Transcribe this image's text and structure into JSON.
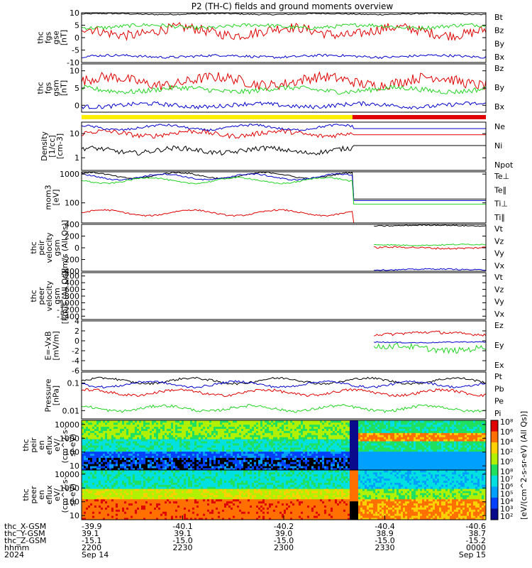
{
  "title": "P2 (TH-C) fields and ground moments overview",
  "colors": {
    "black": "#000000",
    "red": "#e00000",
    "green": "#22d422",
    "blue": "#0000cc",
    "yellow": "#ffee00",
    "barred": "#e00000"
  },
  "chart_data": [
    {
      "type": "line",
      "id": "fgs",
      "ylabel": [
        "thc",
        "fgs",
        "gse",
        "[nT]"
      ],
      "ylim": [
        -10,
        10
      ],
      "yticks": [
        -10,
        -5,
        0,
        5,
        10
      ],
      "series": [
        {
          "name": "Bt",
          "color": "black",
          "base": 9.5,
          "amp": 0.5
        },
        {
          "name": "Bz",
          "color": "red",
          "base": 2.5,
          "amp": 4
        },
        {
          "name": "By",
          "color": "green",
          "base": 4.5,
          "amp": 1.5
        },
        {
          "name": "Bx",
          "color": "blue",
          "base": -7.5,
          "amp": 1
        }
      ]
    },
    {
      "type": "line",
      "id": "fgs_gsm",
      "ylabel": [
        "thc",
        "fgs",
        "gsm",
        "[nT]"
      ],
      "ylim": [
        -2,
        12
      ],
      "yticks": [
        0,
        5,
        10
      ],
      "series": [
        {
          "name": "Bz",
          "color": "red",
          "base": 7,
          "amp": 3
        },
        {
          "name": "By",
          "color": "green",
          "base": 4.5,
          "amp": 1.5
        },
        {
          "name": "Bx",
          "color": "blue",
          "base": 0,
          "amp": 1.2
        }
      ]
    },
    {
      "type": "line",
      "id": "density",
      "ylabel": [
        "Density",
        "[1/cc]",
        "[cm-3]"
      ],
      "scale": "log",
      "ylim": [
        0.3,
        30
      ],
      "yticks": [
        1,
        10
      ],
      "series": [
        {
          "name": "Ne",
          "color": "red",
          "base": 10,
          "amp": 0.2
        },
        {
          "name": "Ni",
          "color": "black",
          "base": 2,
          "amp": 0.2
        },
        {
          "name": "Npot",
          "color": "blue",
          "base": 18,
          "amp": 0.1
        }
      ]
    },
    {
      "type": "line",
      "id": "temp",
      "ylabel": [
        "mom3",
        "[eV]"
      ],
      "scale": "log",
      "ylim": [
        20,
        1200
      ],
      "yticks": [
        100,
        1000
      ],
      "series": [
        {
          "name": "Te⊥",
          "color": "red",
          "base": 45,
          "amp": 0.05
        },
        {
          "name": "Te∥",
          "color": "black",
          "base": 900,
          "amp": 0.05
        },
        {
          "name": "Ti⊥",
          "color": "blue",
          "base": 800,
          "amp": 0.05
        },
        {
          "name": "Ti∥",
          "color": "green",
          "base": 600,
          "amp": 0.05
        }
      ]
    },
    {
      "type": "line",
      "id": "peir_v",
      "ylabel": [
        "thc",
        "peir",
        "velocity",
        "gsm",
        "[km/s (All Qs)]"
      ],
      "ylim": [
        -400,
        400
      ],
      "yticks": [
        -400,
        -200,
        0,
        200,
        400
      ],
      "series": [
        {
          "name": "Vt",
          "color": "black",
          "base": 380,
          "amp": 20
        },
        {
          "name": "Vz",
          "color": "red",
          "base": 0,
          "amp": 30
        },
        {
          "name": "Vy",
          "color": "green",
          "base": 50,
          "amp": 20
        },
        {
          "name": "Vx",
          "color": "blue",
          "base": -370,
          "amp": 20
        }
      ]
    },
    {
      "type": "line",
      "id": "peer_v",
      "ylabel": [
        "thc",
        "peer",
        "velocity",
        "gsm",
        "[km/s (All Qs)]"
      ],
      "ylim": [
        -1500,
        -100
      ],
      "yticks": [
        -1400,
        -1200,
        -1000,
        -800,
        -600,
        -400,
        -200
      ],
      "series": [
        {
          "name": "Vt",
          "color": "black"
        },
        {
          "name": "Vz",
          "color": "red"
        },
        {
          "name": "Vy",
          "color": "green"
        },
        {
          "name": "Vx",
          "color": "blue"
        }
      ]
    },
    {
      "type": "line",
      "id": "efield",
      "ylabel": [
        "E=-VxB",
        "[mV/m]"
      ],
      "ylim": [
        -6,
        4
      ],
      "yticks": [
        -6,
        -4,
        -2,
        0,
        2,
        4
      ],
      "series": [
        {
          "name": "Ez",
          "color": "red",
          "base": 1.5,
          "amp": 0.6
        },
        {
          "name": "Ey",
          "color": "green",
          "base": -1.5,
          "amp": 1.2
        },
        {
          "name": "Ex",
          "color": "blue",
          "base": -0.3,
          "amp": 0.2
        }
      ]
    },
    {
      "type": "line",
      "id": "pressure",
      "ylabel": [
        "Pressure",
        "[nPa]"
      ],
      "scale": "log",
      "ylim": [
        0.005,
        0.25
      ],
      "yticks": [
        0.01,
        0.1
      ],
      "series": [
        {
          "name": "Pt",
          "color": "black",
          "base": 0.12,
          "amp": 0.08
        },
        {
          "name": "Pb",
          "color": "red",
          "base": 0.045,
          "amp": 0.1
        },
        {
          "name": "Pe",
          "color": "green",
          "base": 0.012,
          "amp": 0.1
        },
        {
          "name": "Pi",
          "color": "blue",
          "base": 0.09,
          "amp": 0.08
        }
      ]
    },
    {
      "type": "heatmap",
      "id": "peir_en",
      "ylabel": [
        "thc",
        "peir",
        "en",
        "eflux",
        "eV/",
        "(cm^2-s-",
        "sr-eV)"
      ],
      "ylim": [
        5,
        20000
      ],
      "yticks": [
        10,
        100,
        1000,
        10000
      ]
    },
    {
      "type": "heatmap",
      "id": "peer_en",
      "ylabel": [
        "thc",
        "peer",
        "en",
        "eflux",
        "eV/",
        "(cm^2-s-",
        "sr-eV)"
      ],
      "ylim": [
        5,
        20000
      ],
      "yticks": [
        10,
        100,
        1000,
        10000
      ]
    }
  ],
  "colorbar": {
    "label": "[eV/(cm^2-s-sr-eV) (All Qs)]",
    "upper_ticks": [
      "10⁸",
      "10⁶",
      "10⁴",
      "10²",
      "10⁰"
    ],
    "lower_ticks": [
      "10⁸",
      "10⁷",
      "10⁶",
      "10⁵",
      "10⁴",
      "10³",
      "10²"
    ]
  },
  "xaxis": {
    "row_labels": [
      "thc_X-GSM",
      "thc_Y-GSM",
      "thc_Z-GSM",
      "hhmm",
      "2024"
    ],
    "ticks": [
      {
        "x": "-39.9",
        "y": "39.1",
        "z": "-15.1",
        "t": "2200",
        "d": "Sep 14"
      },
      {
        "x": "-40.1",
        "y": "39.1",
        "z": "-15.0",
        "t": "2230",
        "d": ""
      },
      {
        "x": "-40.2",
        "y": "39.0",
        "z": "-15.0",
        "t": "2300",
        "d": ""
      },
      {
        "x": "-40.4",
        "y": "38.9",
        "z": "-15.0",
        "t": "2330",
        "d": ""
      },
      {
        "x": "-40.6",
        "y": "38.7",
        "z": "-15.2",
        "t": "0000",
        "d": "Sep 15"
      }
    ]
  }
}
